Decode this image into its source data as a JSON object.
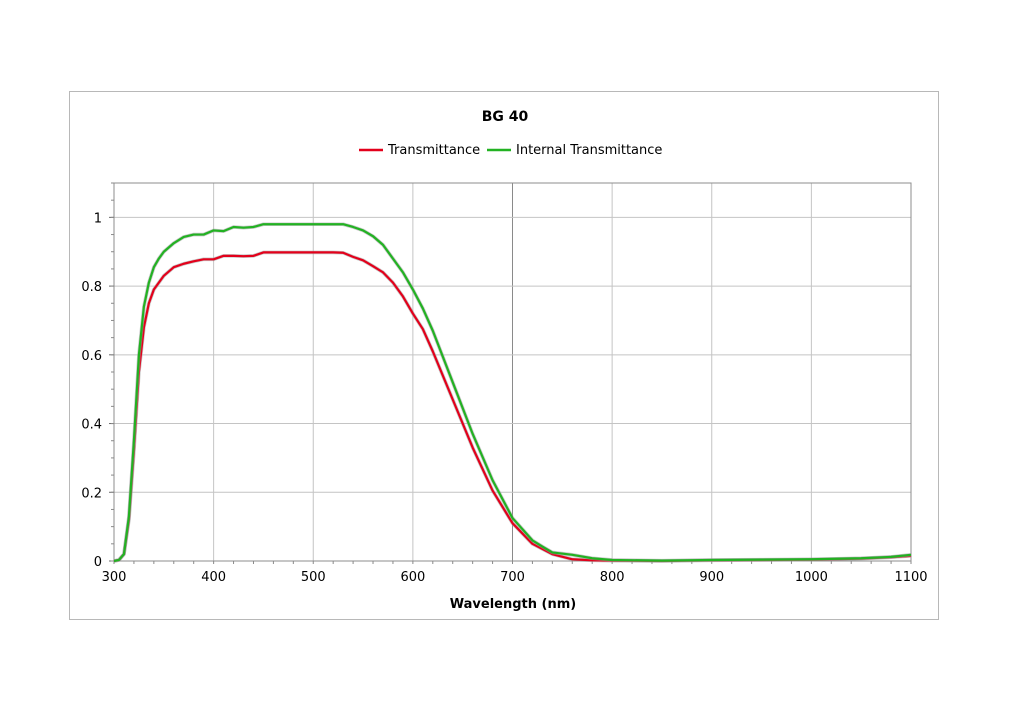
{
  "chart_data": {
    "type": "line",
    "title": "BG 40",
    "xlabel": "Wavelength (nm)",
    "ylabel": "",
    "xlim": [
      300,
      1100
    ],
    "ylim": [
      0,
      1.1
    ],
    "xticks": [
      300,
      400,
      500,
      600,
      700,
      800,
      900,
      1000,
      1100
    ],
    "yticks": [
      0,
      0.2,
      0.4,
      0.6,
      0.8,
      1
    ],
    "ytick_labels": [
      "0",
      "0.2",
      "0.4",
      "0.6",
      "0.8",
      "1"
    ],
    "grid": true,
    "legend_position": "top-center",
    "series": [
      {
        "name": "Transmittance",
        "color": "#e3001b",
        "x": [
          300,
          305,
          310,
          315,
          320,
          325,
          330,
          335,
          340,
          345,
          350,
          360,
          370,
          380,
          390,
          400,
          410,
          420,
          430,
          440,
          450,
          460,
          480,
          500,
          520,
          530,
          540,
          550,
          560,
          570,
          580,
          590,
          600,
          610,
          620,
          640,
          660,
          680,
          700,
          720,
          740,
          760,
          780,
          800,
          850,
          900,
          950,
          1000,
          1050,
          1080,
          1100
        ],
        "y": [
          0.0,
          0.003,
          0.02,
          0.12,
          0.32,
          0.55,
          0.68,
          0.75,
          0.79,
          0.81,
          0.83,
          0.855,
          0.865,
          0.872,
          0.878,
          0.878,
          0.888,
          0.888,
          0.887,
          0.888,
          0.898,
          0.898,
          0.898,
          0.898,
          0.898,
          0.897,
          0.885,
          0.875,
          0.858,
          0.84,
          0.81,
          0.77,
          0.72,
          0.675,
          0.61,
          0.47,
          0.33,
          0.205,
          0.11,
          0.05,
          0.02,
          0.005,
          0.002,
          0.001,
          0.0,
          0.002,
          0.003,
          0.004,
          0.007,
          0.011,
          0.015
        ]
      },
      {
        "name": "Internal Transmittance",
        "color": "#22b222",
        "x": [
          300,
          305,
          310,
          315,
          320,
          325,
          330,
          335,
          340,
          345,
          350,
          360,
          370,
          380,
          390,
          400,
          410,
          420,
          430,
          440,
          450,
          460,
          480,
          500,
          520,
          530,
          540,
          550,
          560,
          570,
          580,
          590,
          600,
          610,
          620,
          640,
          660,
          680,
          700,
          720,
          730,
          740,
          760,
          780,
          800,
          850,
          900,
          950,
          1000,
          1050,
          1080,
          1100
        ],
        "y": [
          0.0,
          0.003,
          0.02,
          0.13,
          0.35,
          0.6,
          0.74,
          0.81,
          0.855,
          0.88,
          0.9,
          0.925,
          0.943,
          0.95,
          0.95,
          0.962,
          0.96,
          0.972,
          0.97,
          0.972,
          0.98,
          0.98,
          0.98,
          0.98,
          0.98,
          0.98,
          0.972,
          0.962,
          0.945,
          0.92,
          0.88,
          0.84,
          0.79,
          0.735,
          0.67,
          0.52,
          0.37,
          0.235,
          0.125,
          0.06,
          0.042,
          0.025,
          0.018,
          0.008,
          0.003,
          0.001,
          0.003,
          0.004,
          0.005,
          0.008,
          0.012,
          0.018
        ]
      }
    ]
  }
}
